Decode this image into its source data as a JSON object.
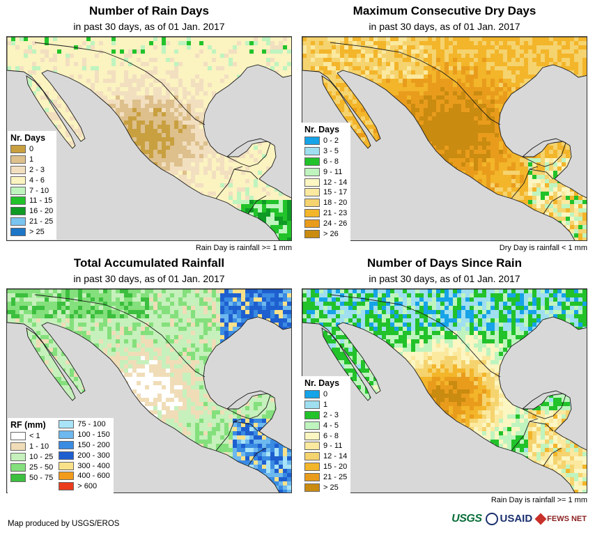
{
  "panels": [
    {
      "title": "Number of Rain Days",
      "subtitle": "in past 30 days, as of 01 Jan. 2017",
      "note": "Rain Day is rainfall >= 1 mm",
      "legend_title": "Nr. Days",
      "legend": [
        {
          "label": "0",
          "color": "#c9a040"
        },
        {
          "label": "1",
          "color": "#ddc08c"
        },
        {
          "label": "2 - 3",
          "color": "#f2dfc0"
        },
        {
          "label": "4 - 6",
          "color": "#fbf3c0"
        },
        {
          "label": "7 - 10",
          "color": "#bff4bf"
        },
        {
          "label": "11 - 15",
          "color": "#22c32a"
        },
        {
          "label": "16 - 20",
          "color": "#0f9a25"
        },
        {
          "label": "21 - 25",
          "color": "#7ac4f0"
        },
        {
          "label": "> 25",
          "color": "#1d76c6"
        }
      ]
    },
    {
      "title": "Maximum Consecutive Dry Days",
      "subtitle": "in past 30 days, as of 01 Jan. 2017",
      "note": "Dry Day is rainfall < 1 mm",
      "legend_title": "Nr. Days",
      "legend": [
        {
          "label": "0 - 2",
          "color": "#16a3e8"
        },
        {
          "label": "3 - 5",
          "color": "#9fdff0"
        },
        {
          "label": "6 - 8",
          "color": "#22c22a"
        },
        {
          "label": "9 - 11",
          "color": "#bff4bf"
        },
        {
          "label": "12 - 14",
          "color": "#fbf6c2"
        },
        {
          "label": "15 - 17",
          "color": "#fbe9a0"
        },
        {
          "label": "18 - 20",
          "color": "#f5d36e"
        },
        {
          "label": "21 - 23",
          "color": "#f3b52a"
        },
        {
          "label": "24 - 26",
          "color": "#e99c1c"
        },
        {
          "label": "> 26",
          "color": "#c98b10"
        }
      ]
    },
    {
      "title": "Total Accumulated Rainfall",
      "subtitle": "in past 30 days, as of 01 Jan. 2017",
      "note": "",
      "legend_title": "RF (mm)",
      "legend": [
        {
          "label": "< 1",
          "color": "#ffffff"
        },
        {
          "label": "1 - 10",
          "color": "#f0ddb8"
        },
        {
          "label": "10 - 25",
          "color": "#c6f0bc"
        },
        {
          "label": "25 - 50",
          "color": "#84e07c"
        },
        {
          "label": "50 - 75",
          "color": "#3cbf3e"
        }
      ],
      "legend2": [
        {
          "label": "75 - 100",
          "color": "#a8e3f7"
        },
        {
          "label": "100 - 150",
          "color": "#6db8ee"
        },
        {
          "label": "150 - 200",
          "color": "#3a8be2"
        },
        {
          "label": "200 - 300",
          "color": "#1e5fd0"
        },
        {
          "label": "300 - 400",
          "color": "#f9e18a"
        },
        {
          "label": "400 - 600",
          "color": "#f29b1a"
        },
        {
          "label": "> 600",
          "color": "#ea3b1c"
        }
      ]
    },
    {
      "title": "Number of Days Since Rain",
      "subtitle": "in past 30 days, as of 01 Jan. 2017",
      "note": "Rain Day is rainfall >= 1 mm",
      "legend_title": "Nr. Days",
      "legend": [
        {
          "label": "0",
          "color": "#16a3e8"
        },
        {
          "label": "1",
          "color": "#9fdff0"
        },
        {
          "label": "2 - 3",
          "color": "#22c22a"
        },
        {
          "label": "4 - 5",
          "color": "#bff4bf"
        },
        {
          "label": "6 - 8",
          "color": "#fbf6c2"
        },
        {
          "label": "9 - 11",
          "color": "#fbe9a0"
        },
        {
          "label": "12 - 14",
          "color": "#f5d36e"
        },
        {
          "label": "15 - 20",
          "color": "#f3b52a"
        },
        {
          "label": "21 - 25",
          "color": "#e99c1c"
        },
        {
          "label": "> 25",
          "color": "#c98b10"
        }
      ]
    }
  ],
  "map_colors": {
    "water": "#d8d8d8",
    "border": "#1a1a1a"
  },
  "footer": "Map produced by USGS/EROS",
  "logos": {
    "usgs": "USGS",
    "usaid": "USAID",
    "fews": "FEWS NET"
  }
}
